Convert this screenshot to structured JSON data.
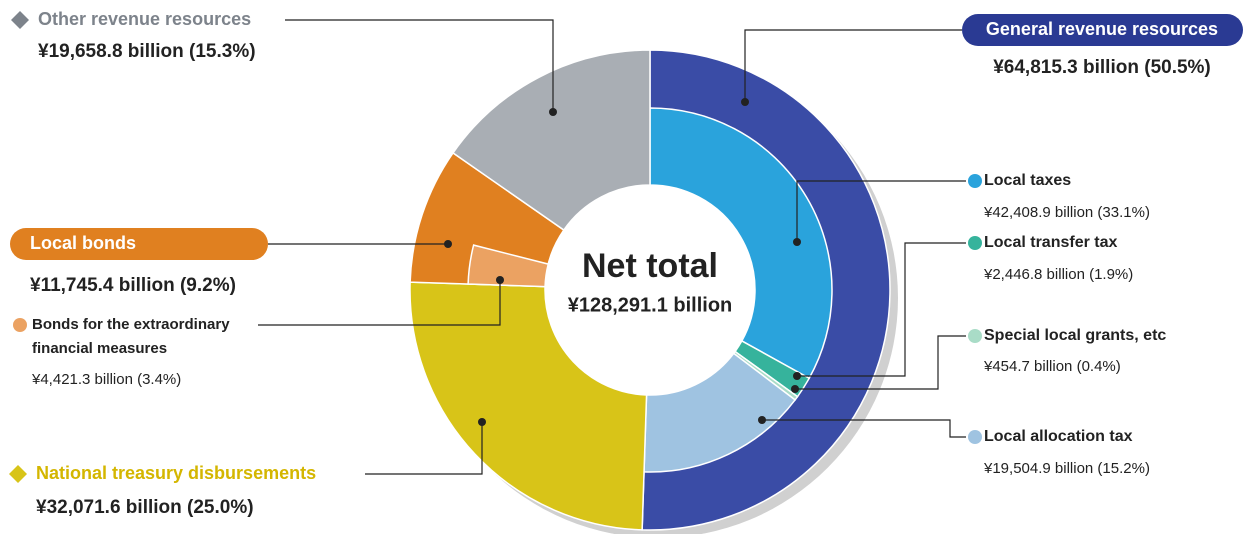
{
  "chart_data": {
    "type": "donut",
    "title": "Net total",
    "total": 128291.1,
    "total_label": "¥128,291.1 billion",
    "segments": [
      {
        "name": "General revenue resources",
        "value": 64815.3,
        "value_label": "¥64,815.3 billion (50.5%)",
        "color": "#3a4ca6",
        "parts": [
          {
            "name": "Local taxes",
            "value": 42408.9,
            "value_label": "¥42,408.9 billion (33.1%)",
            "color": "#2aa3dc"
          },
          {
            "name": "Local transfer tax",
            "value": 2446.8,
            "value_label": "¥2,446.8 billion (1.9%)",
            "color": "#36b39c"
          },
          {
            "name": "Special local grants, etc",
            "value": 454.7,
            "value_label": "¥454.7 billion (0.4%)",
            "color": "#a9dcc7"
          },
          {
            "name": "Local allocation tax",
            "value": 19504.9,
            "value_label": "¥19,504.9 billion (15.2%)",
            "color": "#9fc3e1"
          }
        ]
      },
      {
        "name": "National treasury disbursements",
        "value": 32071.6,
        "value_label": "¥32,071.6 billion (25.0%)",
        "color": "#d8c418"
      },
      {
        "name": "Local bonds",
        "value": 11745.4,
        "value_label": "¥11,745.4 billion (9.2%)",
        "color": "#e08020",
        "parts": [
          {
            "name": "Bonds for the extraordinary financial measures",
            "value": 4421.3,
            "value_label": "¥4,421.3 billion (3.4%)",
            "color": "#eba262"
          }
        ]
      },
      {
        "name": "Other revenue resources",
        "value": 19658.8,
        "value_label": "¥19,658.8 billion (15.3%)",
        "color": "#a9aeb4"
      }
    ]
  }
}
